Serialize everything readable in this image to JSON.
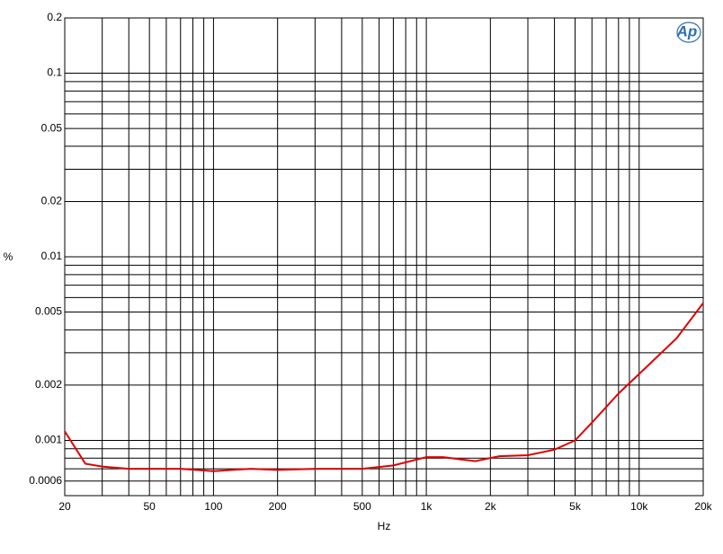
{
  "chart_data": {
    "type": "line",
    "logo": "Ap",
    "xlabel": "Hz",
    "ylabel": "%",
    "xscale": "log",
    "yscale": "log",
    "grid": true,
    "xlim": [
      20,
      20000
    ],
    "ylim": [
      0.0005,
      0.2
    ],
    "xticks": [
      20,
      50,
      100,
      200,
      500,
      {
        "value": 1000,
        "label": "1k"
      },
      {
        "value": 2000,
        "label": "2k"
      },
      {
        "value": 5000,
        "label": "5k"
      },
      {
        "value": 10000,
        "label": "10k"
      },
      {
        "value": 20000,
        "label": "20k"
      }
    ],
    "yticks": [
      0.2,
      0.1,
      0.05,
      0.02,
      0.01,
      0.005,
      0.002,
      0.001,
      0.0006
    ],
    "xgrid": [
      30,
      40,
      60,
      70,
      80,
      90,
      300,
      400,
      600,
      700,
      800,
      900,
      3000,
      4000,
      6000,
      7000,
      8000,
      9000
    ],
    "ygrid": [
      0.0007,
      0.0008,
      0.0009,
      0.003,
      0.004,
      0.006,
      0.007,
      0.008,
      0.009,
      0.03,
      0.04,
      0.06,
      0.07,
      0.08,
      0.09
    ],
    "x": [
      20,
      25,
      30,
      40,
      50,
      70,
      100,
      150,
      200,
      300,
      500,
      700,
      1000,
      1200,
      1700,
      2200,
      3000,
      4000,
      5000,
      6000,
      8000,
      10000,
      15000,
      20000
    ],
    "series": [
      {
        "color": "#e00000",
        "values": [
          0.00112,
          0.000746,
          0.00072,
          0.0007,
          0.0007,
          0.0007,
          0.00068,
          0.0007,
          0.00069,
          0.0007,
          0.0007,
          0.00073,
          0.00081,
          0.00081,
          0.00077,
          0.00082,
          0.00083,
          0.00089,
          0.001,
          0.00125,
          0.0018,
          0.0023,
          0.0036,
          0.0056
        ]
      }
    ]
  }
}
